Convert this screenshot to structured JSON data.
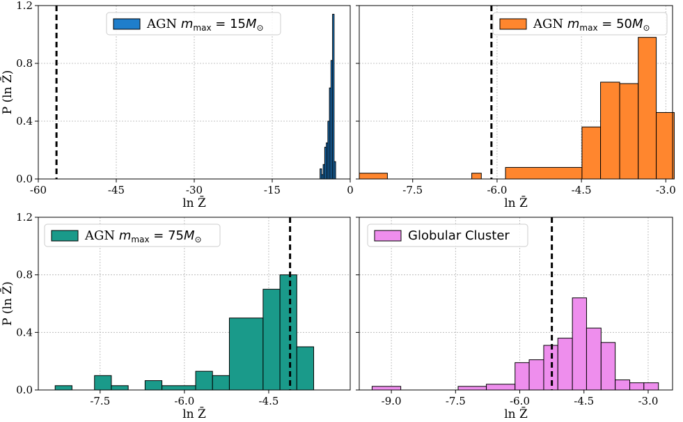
{
  "chart_data": [
    {
      "type": "histogram",
      "legend": "AGN m_max = 15M_⊙",
      "legend_parts": {
        "prefix": "AGN ",
        "var": "m",
        "sub": "max",
        "eq": " = 15",
        "unit": "M",
        "unitsub": "⊙"
      },
      "color": "#1f7ecb",
      "xlabel": "ln Z̄",
      "ylabel": "P (ln Z̄)",
      "xlim": [
        -60,
        0
      ],
      "ylim": [
        0,
        1.2
      ],
      "xticks": [
        -60,
        -45,
        -30,
        -15,
        0
      ],
      "xtick_labels": [
        "-60",
        "-45",
        "-30",
        "-15",
        "0"
      ],
      "yticks": [
        0.0,
        0.4,
        0.8,
        1.2
      ],
      "ytick_labels": [
        "0.0",
        "0.4",
        "0.8",
        "1.2"
      ],
      "vline": -56.5,
      "bins": [
        {
          "x0": -5.8,
          "x1": -5.5,
          "y": 0.07
        },
        {
          "x0": -5.5,
          "x1": -5.2,
          "y": 0.03
        },
        {
          "x0": -5.2,
          "x1": -4.9,
          "y": 0.1
        },
        {
          "x0": -4.9,
          "x1": -4.6,
          "y": 0.22
        },
        {
          "x0": -4.6,
          "x1": -4.3,
          "y": 0.25
        },
        {
          "x0": -4.3,
          "x1": -4.0,
          "y": 0.4
        },
        {
          "x0": -4.0,
          "x1": -3.7,
          "y": 0.63
        },
        {
          "x0": -3.7,
          "x1": -3.4,
          "y": 0.82
        },
        {
          "x0": -3.4,
          "x1": -3.1,
          "y": 1.14
        },
        {
          "x0": -3.1,
          "x1": -2.8,
          "y": 0.12
        }
      ]
    },
    {
      "type": "histogram",
      "legend": "AGN m_max = 50M_⊙",
      "legend_parts": {
        "prefix": "AGN ",
        "var": "m",
        "sub": "max",
        "eq": " = 50",
        "unit": "M",
        "unitsub": "⊙"
      },
      "color": "#ff862e",
      "xlabel": "ln Z̄",
      "ylabel": "",
      "xlim": [
        -8.45,
        -2.88
      ],
      "ylim": [
        0,
        1.2
      ],
      "xticks": [
        -7.5,
        -6.0,
        -4.5,
        -3.0
      ],
      "xtick_labels": [
        "-7.5",
        "-6.0",
        "-4.5",
        "-3.0"
      ],
      "yticks": [
        0.0,
        0.4,
        0.8,
        1.2
      ],
      "ytick_labels": [
        "",
        "",
        "",
        ""
      ],
      "vline": -6.1,
      "bins": [
        {
          "x0": -8.45,
          "x1": -7.95,
          "y": 0.04
        },
        {
          "x0": -6.45,
          "x1": -6.28,
          "y": 0.04
        },
        {
          "x0": -5.85,
          "x1": -4.49,
          "y": 0.08
        },
        {
          "x0": -4.49,
          "x1": -4.16,
          "y": 0.36
        },
        {
          "x0": -4.16,
          "x1": -3.82,
          "y": 0.67
        },
        {
          "x0": -3.82,
          "x1": -3.49,
          "y": 0.66
        },
        {
          "x0": -3.49,
          "x1": -3.17,
          "y": 0.98
        },
        {
          "x0": -3.17,
          "x1": -2.85,
          "y": 0.46
        }
      ]
    },
    {
      "type": "histogram",
      "legend": "AGN m_max = 75M_⊙",
      "legend_parts": {
        "prefix": "AGN ",
        "var": "m",
        "sub": "max",
        "eq": " = 75",
        "unit": "M",
        "unitsub": "⊙"
      },
      "color": "#1a9a8a",
      "xlabel": "ln Z̄",
      "ylabel": "P (ln Z̄)",
      "xlim": [
        -8.6,
        -3.05
      ],
      "ylim": [
        0,
        1.2
      ],
      "xticks": [
        -7.5,
        -6.0,
        -4.5
      ],
      "xtick_labels": [
        "-7.5",
        "-6.0",
        "-4.5"
      ],
      "yticks": [
        0.0,
        0.4,
        0.8,
        1.2
      ],
      "ytick_labels": [
        "0.0",
        "0.4",
        "0.8",
        "1.2"
      ],
      "vline": -4.12,
      "bins": [
        {
          "x0": -8.3,
          "x1": -8.0,
          "y": 0.03
        },
        {
          "x0": -8.0,
          "x1": -7.6,
          "y": 0.0
        },
        {
          "x0": -7.6,
          "x1": -7.3,
          "y": 0.1
        },
        {
          "x0": -7.3,
          "x1": -7.0,
          "y": 0.03
        },
        {
          "x0": -7.0,
          "x1": -6.7,
          "y": 0.0
        },
        {
          "x0": -6.7,
          "x1": -6.4,
          "y": 0.065
        },
        {
          "x0": -6.4,
          "x1": -5.8,
          "y": 0.03
        },
        {
          "x0": -5.8,
          "x1": -5.5,
          "y": 0.13
        },
        {
          "x0": -5.5,
          "x1": -5.2,
          "y": 0.1
        },
        {
          "x0": -5.2,
          "x1": -4.6,
          "y": 0.5
        },
        {
          "x0": -4.6,
          "x1": -4.3,
          "y": 0.7
        },
        {
          "x0": -4.3,
          "x1": -4.0,
          "y": 0.8
        },
        {
          "x0": -4.0,
          "x1": -3.7,
          "y": 0.3
        }
      ]
    },
    {
      "type": "histogram",
      "legend": "Globular Cluster",
      "legend_parts": {
        "prefix": "Globular Cluster"
      },
      "color": "#ee8eed",
      "xlabel": "ln Z̄",
      "ylabel": "",
      "xlim": [
        -9.75,
        -2.43
      ],
      "ylim": [
        0,
        1.2
      ],
      "xticks": [
        -9.0,
        -7.5,
        -6.0,
        -4.5,
        -3.0
      ],
      "xtick_labels": [
        "-9.0",
        "-7.5",
        "-6.0",
        "-4.5",
        "-3.0"
      ],
      "yticks": [
        0.0,
        0.4,
        0.8,
        1.2
      ],
      "ytick_labels": [
        "",
        "",
        "",
        ""
      ],
      "vline": -5.25,
      "bins": [
        {
          "x0": -9.45,
          "x1": -8.78,
          "y": 0.025
        },
        {
          "x0": -7.44,
          "x1": -6.78,
          "y": 0.025
        },
        {
          "x0": -6.78,
          "x1": -6.11,
          "y": 0.04
        },
        {
          "x0": -6.11,
          "x1": -5.78,
          "y": 0.19
        },
        {
          "x0": -5.78,
          "x1": -5.44,
          "y": 0.21
        },
        {
          "x0": -5.44,
          "x1": -5.11,
          "y": 0.31
        },
        {
          "x0": -5.11,
          "x1": -4.77,
          "y": 0.36
        },
        {
          "x0": -4.77,
          "x1": -4.44,
          "y": 0.64
        },
        {
          "x0": -4.44,
          "x1": -4.1,
          "y": 0.43
        },
        {
          "x0": -4.1,
          "x1": -3.77,
          "y": 0.33
        },
        {
          "x0": -3.77,
          "x1": -3.43,
          "y": 0.07
        },
        {
          "x0": -3.43,
          "x1": -3.1,
          "y": 0.05
        },
        {
          "x0": -3.1,
          "x1": -2.76,
          "y": 0.05
        }
      ]
    }
  ]
}
